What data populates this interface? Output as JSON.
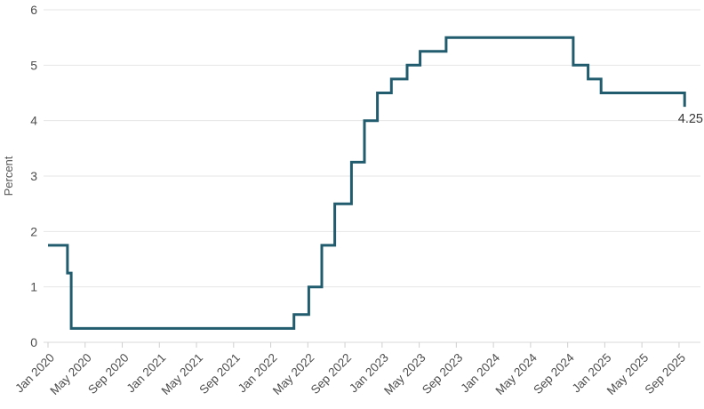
{
  "chart_data": {
    "type": "line",
    "step": "post",
    "title": "",
    "xlabel": "",
    "ylabel": "Percent",
    "x_unit": "months since Jan 2020",
    "grid": "horizontal",
    "legend": "none",
    "ylim": [
      0,
      6
    ],
    "xlim": [
      -0.5,
      70.3
    ],
    "y_ticks": [
      0,
      1,
      2,
      3,
      4,
      5,
      6
    ],
    "x_tick_months": [
      0,
      4,
      8,
      12,
      16,
      20,
      24,
      28,
      32,
      36,
      40,
      44,
      48,
      52,
      56,
      60,
      64,
      68
    ],
    "x_tick_labels": [
      "Jan 2020",
      "May 2020",
      "Sep 2020",
      "Jan 2021",
      "May 2021",
      "Sep 2021",
      "Jan 2022",
      "May 2022",
      "Sep 2022",
      "Jan 2023",
      "May 2023",
      "Sep 2023",
      "Jan 2024",
      "May 2024",
      "Sep 2024",
      "Jan 2025",
      "May 2025",
      "Sep 2025"
    ],
    "series": [
      {
        "points": [
          [
            0,
            1.75
          ],
          [
            2.1,
            1.25
          ],
          [
            2.5,
            0.25
          ],
          [
            26.5,
            0.5
          ],
          [
            28.1,
            1.0
          ],
          [
            29.5,
            1.75
          ],
          [
            30.9,
            2.5
          ],
          [
            32.7,
            3.25
          ],
          [
            34.1,
            4.0
          ],
          [
            35.5,
            4.5
          ],
          [
            37.0,
            4.75
          ],
          [
            38.7,
            5.0
          ],
          [
            40.1,
            5.25
          ],
          [
            42.9,
            5.5
          ],
          [
            56.6,
            5.0
          ],
          [
            58.2,
            4.75
          ],
          [
            59.6,
            4.5
          ],
          [
            68.6,
            4.25
          ]
        ]
      }
    ],
    "end_annotation": "4.25",
    "colors": {
      "line": "#215c6e",
      "grid": "#e6e6e6",
      "axis_line": "#d9d9d9",
      "tick": "#cfcfcf",
      "tick_label": "#4d4d4d",
      "annotation": "#383838",
      "background": "#ffffff"
    }
  }
}
